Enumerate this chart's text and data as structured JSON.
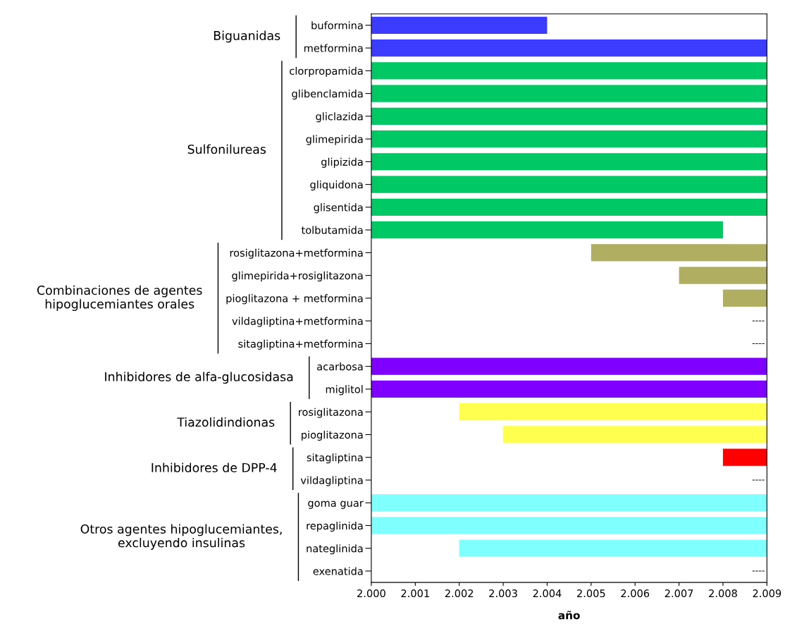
{
  "chart_data": {
    "type": "bar",
    "orientation": "horizontal",
    "xlabel": "año",
    "categories": [
      "buformina",
      "metformina",
      "clorpropamida",
      "glibenclamida",
      "gliclazida",
      "glimepirida",
      "glipizida",
      "gliquidona",
      "glisentida",
      "tolbutamida",
      "rosiglitazona+metformina",
      "glimepirida+rosiglitazona",
      "pioglitazona + metformina",
      "vildagliptina+metformina",
      "sitagliptina+metformina",
      "acarbosa",
      "miglitol",
      "rosiglitazona",
      "pioglitazona",
      "sitagliptina",
      "vildagliptina",
      "goma guar",
      "repaglinida",
      "nateglinida",
      "exenatida"
    ],
    "base": [
      2000,
      2000,
      2000,
      2000,
      2000,
      2000,
      2000,
      2000,
      2000,
      2000,
      2005,
      2007,
      2008,
      null,
      null,
      2000,
      2000,
      2002,
      2003,
      2008,
      null,
      2000,
      2000,
      2002,
      null
    ],
    "values": [
      4,
      9,
      9,
      9,
      9,
      9,
      9,
      9,
      9,
      8,
      4,
      2,
      1,
      null,
      null,
      9,
      9,
      7,
      6,
      1,
      null,
      9,
      9,
      7,
      null
    ],
    "value_labels": [
      null,
      null,
      null,
      null,
      null,
      null,
      null,
      null,
      null,
      null,
      null,
      null,
      null,
      "----",
      "----",
      null,
      null,
      null,
      null,
      null,
      "----",
      null,
      null,
      null,
      "----"
    ],
    "colors": [
      "#3c3cff",
      "#3c3cff",
      "#00c864",
      "#00c864",
      "#00c864",
      "#00c864",
      "#00c864",
      "#00c864",
      "#00c864",
      "#00c864",
      "#b0ae60",
      "#b0ae60",
      "#b0ae60",
      "#b0ae60",
      "#b0ae60",
      "#8000ff",
      "#8000ff",
      "#ffff50",
      "#ffff50",
      "#ff0000",
      "#ff0000",
      "#80ffff",
      "#80ffff",
      "#80ffff",
      "#80ffff"
    ],
    "xlim": [
      2000,
      2009
    ],
    "xticks": [
      {
        "value": 2000,
        "label": "2.000"
      },
      {
        "value": 2001,
        "label": "2.001"
      },
      {
        "value": 2002,
        "label": "2.002"
      },
      {
        "value": 2003,
        "label": "2.003"
      },
      {
        "value": 2004,
        "label": "2.004"
      },
      {
        "value": 2005,
        "label": "2.005"
      },
      {
        "value": 2006,
        "label": "2.006"
      },
      {
        "value": 2007,
        "label": "2.007"
      },
      {
        "value": 2008,
        "label": "2.008"
      },
      {
        "value": 2009,
        "label": "2.009"
      }
    ],
    "annotations": [
      "Biguanidas",
      "Sulfonilureas",
      "Combinaciones de agentes\nhipoglucemiantes orales",
      "Inhibidores de alfa-glucosidasa",
      "Tiazolidindionas",
      "Inhibidores de DPP-4",
      "Otros agentes hipoglucemiantes,\nexcluyendo insulinas"
    ],
    "grid": false,
    "legend": false
  }
}
